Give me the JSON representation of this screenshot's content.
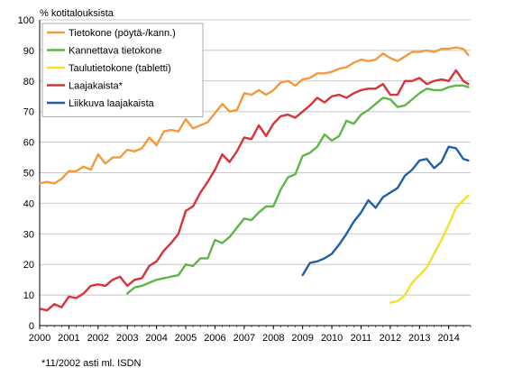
{
  "chart_data": {
    "type": "line",
    "ylabel": "% kotitalouksista",
    "ylim": [
      0,
      100
    ],
    "yticks": [
      0,
      10,
      20,
      30,
      40,
      50,
      60,
      70,
      80,
      90,
      100
    ],
    "xlim": [
      2000,
      2014.75
    ],
    "xticks": [
      "2000",
      "2001",
      "2002",
      "2003",
      "2004",
      "2005",
      "2006",
      "2007",
      "2008",
      "2009",
      "2010",
      "2011",
      "2012",
      "2013",
      "2014"
    ],
    "footnote": "*11/2002 asti ml. ISDN",
    "legend_position": "top-left, inside plot",
    "grid": "horizontal",
    "series": [
      {
        "name": "Tietokone (pöytä-/kann.)",
        "color": "#f39a3c",
        "x": [
          2000.0,
          2000.25,
          2000.5,
          2000.75,
          2001.0,
          2001.25,
          2001.5,
          2001.75,
          2002.0,
          2002.25,
          2002.5,
          2002.75,
          2003.0,
          2003.25,
          2003.5,
          2003.75,
          2004.0,
          2004.25,
          2004.5,
          2004.75,
          2005.0,
          2005.25,
          2005.5,
          2005.75,
          2006.0,
          2006.25,
          2006.5,
          2006.75,
          2007.0,
          2007.25,
          2007.5,
          2007.75,
          2008.0,
          2008.25,
          2008.5,
          2008.75,
          2009.0,
          2009.25,
          2009.5,
          2009.75,
          2010.0,
          2010.25,
          2010.5,
          2010.75,
          2011.0,
          2011.25,
          2011.5,
          2011.75,
          2012.0,
          2012.25,
          2012.5,
          2012.75,
          2013.0,
          2013.25,
          2013.5,
          2013.75,
          2014.0,
          2014.25,
          2014.5,
          2014.67
        ],
        "y": [
          46.5,
          47.0,
          46.5,
          48.0,
          50.5,
          50.5,
          52.0,
          51.0,
          56.0,
          53.0,
          55.0,
          55.0,
          57.5,
          57.0,
          58.0,
          61.5,
          59.0,
          63.5,
          64.0,
          63.5,
          67.5,
          64.5,
          65.5,
          66.5,
          69.5,
          72.5,
          70.0,
          70.5,
          76.0,
          75.5,
          77.0,
          75.5,
          77.0,
          79.5,
          80.0,
          78.5,
          80.5,
          81.0,
          82.5,
          82.5,
          83.0,
          84.0,
          84.5,
          86.0,
          87.0,
          86.5,
          87.0,
          89.0,
          87.5,
          86.5,
          88.0,
          89.5,
          89.5,
          90.0,
          89.5,
          90.5,
          90.5,
          91.0,
          90.5,
          88.5
        ]
      },
      {
        "name": "Kannettava tietokone",
        "color": "#5cb746",
        "x": [
          2003.0,
          2003.25,
          2003.5,
          2003.75,
          2004.0,
          2004.25,
          2004.5,
          2004.75,
          2005.0,
          2005.25,
          2005.5,
          2005.75,
          2006.0,
          2006.25,
          2006.5,
          2006.75,
          2007.0,
          2007.25,
          2007.5,
          2007.75,
          2008.0,
          2008.25,
          2008.5,
          2008.75,
          2009.0,
          2009.25,
          2009.5,
          2009.75,
          2010.0,
          2010.25,
          2010.5,
          2010.75,
          2011.0,
          2011.25,
          2011.5,
          2011.75,
          2012.0,
          2012.25,
          2012.5,
          2012.75,
          2013.0,
          2013.25,
          2013.5,
          2013.75,
          2014.0,
          2014.25,
          2014.5,
          2014.67
        ],
        "y": [
          10.5,
          12.5,
          13.0,
          14.0,
          15.0,
          15.5,
          16.0,
          16.5,
          20.0,
          19.5,
          22.0,
          22.0,
          28.0,
          27.0,
          29.0,
          32.0,
          35.0,
          34.5,
          37.0,
          39.0,
          39.0,
          44.5,
          48.5,
          49.5,
          55.5,
          56.5,
          58.5,
          62.5,
          60.5,
          62.0,
          67.0,
          66.0,
          69.0,
          70.5,
          72.5,
          74.5,
          74.0,
          71.5,
          72.0,
          74.0,
          76.0,
          77.5,
          77.0,
          77.0,
          78.0,
          78.5,
          78.5,
          78.0
        ]
      },
      {
        "name": "Taulutietokone (tabletti)",
        "color": "#f2e12c",
        "x": [
          2012.0,
          2012.25,
          2012.5,
          2012.75,
          2013.0,
          2013.25,
          2013.5,
          2013.75,
          2014.0,
          2014.25,
          2014.5,
          2014.67
        ],
        "y": [
          7.5,
          8.0,
          10.0,
          14.0,
          16.5,
          19.0,
          23.5,
          28.0,
          33.0,
          38.5,
          41.0,
          42.5
        ]
      },
      {
        "name": "Laajakaista*",
        "color": "#d8323a",
        "x": [
          2000.0,
          2000.25,
          2000.5,
          2000.75,
          2001.0,
          2001.25,
          2001.5,
          2001.75,
          2002.0,
          2002.25,
          2002.5,
          2002.75,
          2003.0,
          2003.25,
          2003.5,
          2003.75,
          2004.0,
          2004.25,
          2004.5,
          2004.75,
          2005.0,
          2005.25,
          2005.5,
          2005.75,
          2006.0,
          2006.25,
          2006.5,
          2006.75,
          2007.0,
          2007.25,
          2007.5,
          2007.75,
          2008.0,
          2008.25,
          2008.5,
          2008.75,
          2009.0,
          2009.25,
          2009.5,
          2009.75,
          2010.0,
          2010.25,
          2010.5,
          2010.75,
          2011.0,
          2011.25,
          2011.5,
          2011.75,
          2012.0,
          2012.25,
          2012.5,
          2012.75,
          2013.0,
          2013.25,
          2013.5,
          2013.75,
          2014.0,
          2014.25,
          2014.5,
          2014.67
        ],
        "y": [
          5.5,
          5.0,
          7.0,
          6.0,
          9.5,
          9.0,
          10.5,
          13.0,
          13.5,
          13.0,
          15.0,
          16.0,
          13.0,
          15.0,
          15.5,
          19.5,
          21.0,
          24.5,
          27.0,
          30.0,
          37.5,
          39.0,
          43.5,
          47.0,
          51.0,
          56.0,
          53.5,
          57.0,
          61.5,
          61.0,
          65.5,
          62.0,
          66.0,
          68.5,
          69.0,
          68.0,
          70.0,
          72.0,
          74.5,
          73.0,
          75.0,
          75.5,
          74.5,
          76.0,
          77.0,
          77.5,
          77.5,
          79.0,
          75.5,
          75.5,
          80.0,
          80.0,
          81.0,
          79.0,
          80.0,
          80.5,
          80.0,
          83.5,
          80.0,
          79.0
        ]
      },
      {
        "name": "Liikkuva laajakaista",
        "color": "#1f5fa8",
        "x": [
          2009.0,
          2009.25,
          2009.5,
          2009.75,
          2010.0,
          2010.25,
          2010.5,
          2010.75,
          2011.0,
          2011.25,
          2011.5,
          2011.75,
          2012.0,
          2012.25,
          2012.5,
          2012.75,
          2013.0,
          2013.25,
          2013.5,
          2013.75,
          2014.0,
          2014.25,
          2014.5,
          2014.67
        ],
        "y": [
          16.5,
          20.5,
          21.0,
          22.0,
          23.5,
          26.5,
          30.0,
          34.0,
          37.0,
          41.0,
          38.5,
          42.0,
          43.5,
          45.0,
          49.0,
          51.0,
          54.0,
          54.5,
          51.5,
          53.5,
          58.5,
          58.0,
          54.5,
          54.0
        ]
      }
    ]
  }
}
